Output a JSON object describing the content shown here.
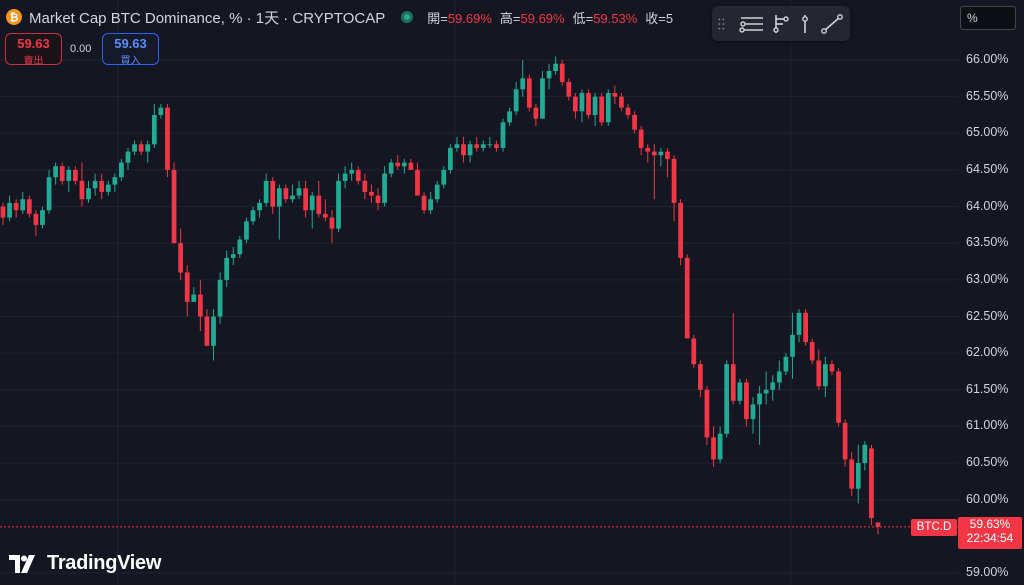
{
  "header": {
    "coin_symbol": "₿",
    "title": "Market Cap BTC Dominance, % · 1天 · CRYPTOCAP",
    "open_label": "開=",
    "open_value": "59.69%",
    "high_label": "高=",
    "high_value": "59.69%",
    "low_label": "低=",
    "low_value": "59.53%",
    "close_label": "收=5"
  },
  "trade": {
    "sell_price": "59.63",
    "sell_label": "賣出",
    "spread": "0.00",
    "buy_price": "59.63",
    "buy_label": "買入"
  },
  "toolbar": {
    "icons": [
      "grip-icon",
      "horizontal-lines-icon",
      "fib-tool-icon",
      "vertical-line-icon",
      "trend-line-icon"
    ]
  },
  "scale_mode": "%",
  "price_tag": {
    "symbol": "BTC.D",
    "price": "59.63%",
    "countdown": "22:34:54"
  },
  "brand": "TradingView",
  "colors": {
    "up": "#22ab94",
    "down": "#f23645",
    "background": "#141722",
    "grid": "#1f2330"
  },
  "chart_data": {
    "type": "candlestick",
    "y_ticks": [
      "66.00%",
      "65.50%",
      "65.00%",
      "64.50%",
      "64.00%",
      "63.50%",
      "63.00%",
      "62.50%",
      "62.00%",
      "61.50%",
      "61.00%",
      "60.50%",
      "60.00%",
      "59.00%"
    ],
    "ylim": [
      59.0,
      66.3
    ],
    "last_price": 59.63,
    "grid": true,
    "candles": [
      [
        64.0,
        64.05,
        63.75,
        63.85
      ],
      [
        63.85,
        64.15,
        63.8,
        64.05
      ],
      [
        64.05,
        64.1,
        63.85,
        63.95
      ],
      [
        63.95,
        64.2,
        63.9,
        64.1
      ],
      [
        64.1,
        64.15,
        63.85,
        63.9
      ],
      [
        63.9,
        63.95,
        63.6,
        63.75
      ],
      [
        63.75,
        64.0,
        63.7,
        63.95
      ],
      [
        63.95,
        64.5,
        63.9,
        64.4
      ],
      [
        64.4,
        64.6,
        64.3,
        64.55
      ],
      [
        64.55,
        64.6,
        64.3,
        64.35
      ],
      [
        64.35,
        64.55,
        64.2,
        64.5
      ],
      [
        64.5,
        64.55,
        64.3,
        64.35
      ],
      [
        64.35,
        64.6,
        64.0,
        64.1
      ],
      [
        64.1,
        64.35,
        64.05,
        64.25
      ],
      [
        64.25,
        64.45,
        64.15,
        64.35
      ],
      [
        64.35,
        64.45,
        64.1,
        64.2
      ],
      [
        64.2,
        64.35,
        64.15,
        64.3
      ],
      [
        64.3,
        64.45,
        64.2,
        64.4
      ],
      [
        64.4,
        64.65,
        64.35,
        64.6
      ],
      [
        64.6,
        64.8,
        64.5,
        64.75
      ],
      [
        64.75,
        64.9,
        64.7,
        64.85
      ],
      [
        64.85,
        64.9,
        64.7,
        64.75
      ],
      [
        64.75,
        64.9,
        64.6,
        64.85
      ],
      [
        64.85,
        65.4,
        64.8,
        65.25
      ],
      [
        65.25,
        65.4,
        65.2,
        65.35
      ],
      [
        65.35,
        65.4,
        64.4,
        64.5
      ],
      [
        64.5,
        64.6,
        63.5,
        63.5
      ],
      [
        63.5,
        63.7,
        63.0,
        63.1
      ],
      [
        63.1,
        63.2,
        62.5,
        62.7
      ],
      [
        62.7,
        62.9,
        62.7,
        62.8
      ],
      [
        62.8,
        63.0,
        62.3,
        62.5
      ],
      [
        62.5,
        62.6,
        62.1,
        62.1
      ],
      [
        62.1,
        62.6,
        61.9,
        62.5
      ],
      [
        62.5,
        63.1,
        62.4,
        63.0
      ],
      [
        63.0,
        63.4,
        62.9,
        63.3
      ],
      [
        63.3,
        63.45,
        63.2,
        63.35
      ],
      [
        63.35,
        63.6,
        63.3,
        63.55
      ],
      [
        63.55,
        63.85,
        63.5,
        63.8
      ],
      [
        63.8,
        64.0,
        63.75,
        63.95
      ],
      [
        63.95,
        64.1,
        63.85,
        64.05
      ],
      [
        64.05,
        64.45,
        64.0,
        64.35
      ],
      [
        64.35,
        64.4,
        63.9,
        64.0
      ],
      [
        64.0,
        64.3,
        63.55,
        64.25
      ],
      [
        64.25,
        64.3,
        64.05,
        64.1
      ],
      [
        64.1,
        64.3,
        64.05,
        64.15
      ],
      [
        64.15,
        64.35,
        64.1,
        64.25
      ],
      [
        64.25,
        64.35,
        63.85,
        63.95
      ],
      [
        63.95,
        64.2,
        63.7,
        64.15
      ],
      [
        64.15,
        64.35,
        63.85,
        63.9
      ],
      [
        63.9,
        64.1,
        63.8,
        63.85
      ],
      [
        63.85,
        63.95,
        63.5,
        63.7
      ],
      [
        63.7,
        64.45,
        63.65,
        64.35
      ],
      [
        64.35,
        64.55,
        64.25,
        64.45
      ],
      [
        64.45,
        64.6,
        64.35,
        64.5
      ],
      [
        64.5,
        64.55,
        64.3,
        64.35
      ],
      [
        64.35,
        64.45,
        64.1,
        64.2
      ],
      [
        64.2,
        64.3,
        64.05,
        64.15
      ],
      [
        64.15,
        64.25,
        63.95,
        64.05
      ],
      [
        64.05,
        64.55,
        64.0,
        64.45
      ],
      [
        64.45,
        64.65,
        64.4,
        64.6
      ],
      [
        64.6,
        64.7,
        64.5,
        64.55
      ],
      [
        64.55,
        64.65,
        64.45,
        64.6
      ],
      [
        64.6,
        64.65,
        64.5,
        64.5
      ],
      [
        64.5,
        64.6,
        64.15,
        64.15
      ],
      [
        64.15,
        64.2,
        63.9,
        63.95
      ],
      [
        63.95,
        64.2,
        63.9,
        64.1
      ],
      [
        64.1,
        64.35,
        64.05,
        64.3
      ],
      [
        64.3,
        64.55,
        64.25,
        64.5
      ],
      [
        64.5,
        64.85,
        64.45,
        64.8
      ],
      [
        64.8,
        64.95,
        64.75,
        64.85
      ],
      [
        64.85,
        64.95,
        64.6,
        64.7
      ],
      [
        64.7,
        64.9,
        64.6,
        64.85
      ],
      [
        64.85,
        64.95,
        64.75,
        64.8
      ],
      [
        64.8,
        64.9,
        64.75,
        64.85
      ],
      [
        64.85,
        64.95,
        64.8,
        64.85
      ],
      [
        64.85,
        64.9,
        64.75,
        64.8
      ],
      [
        64.8,
        65.2,
        64.75,
        65.15
      ],
      [
        65.15,
        65.35,
        65.1,
        65.3
      ],
      [
        65.3,
        65.7,
        65.25,
        65.6
      ],
      [
        65.6,
        66.0,
        65.5,
        65.75
      ],
      [
        65.75,
        65.8,
        65.3,
        65.35
      ],
      [
        65.35,
        65.4,
        65.1,
        65.2
      ],
      [
        65.2,
        65.85,
        65.2,
        65.75
      ],
      [
        65.75,
        65.95,
        65.6,
        65.85
      ],
      [
        65.85,
        66.05,
        65.8,
        65.95
      ],
      [
        65.95,
        66.0,
        65.65,
        65.7
      ],
      [
        65.7,
        65.75,
        65.45,
        65.5
      ],
      [
        65.5,
        65.55,
        65.2,
        65.3
      ],
      [
        65.3,
        65.6,
        65.15,
        65.55
      ],
      [
        65.55,
        65.6,
        65.2,
        65.25
      ],
      [
        65.25,
        65.55,
        65.1,
        65.5
      ],
      [
        65.5,
        65.55,
        65.1,
        65.15
      ],
      [
        65.15,
        65.6,
        65.1,
        65.55
      ],
      [
        65.55,
        65.65,
        65.4,
        65.5
      ],
      [
        65.5,
        65.55,
        65.3,
        65.35
      ],
      [
        65.35,
        65.4,
        65.2,
        65.25
      ],
      [
        65.25,
        65.3,
        65.0,
        65.05
      ],
      [
        65.05,
        65.1,
        64.7,
        64.8
      ],
      [
        64.8,
        64.85,
        64.6,
        64.75
      ],
      [
        64.75,
        64.85,
        64.1,
        64.7
      ],
      [
        64.7,
        64.8,
        64.55,
        64.75
      ],
      [
        64.75,
        64.8,
        64.4,
        64.65
      ],
      [
        64.65,
        64.7,
        63.8,
        64.05
      ],
      [
        64.05,
        64.1,
        63.2,
        63.3
      ],
      [
        63.3,
        63.35,
        62.2,
        62.2
      ],
      [
        62.2,
        62.25,
        61.8,
        61.85
      ],
      [
        61.85,
        61.9,
        61.4,
        61.5
      ],
      [
        61.5,
        61.55,
        60.75,
        60.85
      ],
      [
        60.85,
        61.0,
        60.45,
        60.55
      ],
      [
        60.55,
        61.0,
        60.5,
        60.9
      ],
      [
        60.9,
        61.9,
        60.85,
        61.85
      ],
      [
        61.85,
        62.55,
        61.3,
        61.35
      ],
      [
        61.35,
        61.65,
        61.3,
        61.6
      ],
      [
        61.6,
        61.65,
        61.0,
        61.1
      ],
      [
        61.1,
        61.4,
        60.9,
        61.3
      ],
      [
        61.3,
        61.55,
        60.75,
        61.45
      ],
      [
        61.45,
        61.75,
        61.3,
        61.5
      ],
      [
        61.5,
        61.7,
        61.35,
        61.6
      ],
      [
        61.6,
        61.9,
        61.5,
        61.75
      ],
      [
        61.75,
        62.0,
        61.7,
        61.95
      ],
      [
        61.95,
        62.55,
        61.65,
        62.25
      ],
      [
        62.25,
        62.6,
        62.15,
        62.55
      ],
      [
        62.55,
        62.6,
        62.1,
        62.15
      ],
      [
        62.15,
        62.2,
        61.85,
        61.9
      ],
      [
        61.9,
        62.05,
        61.5,
        61.55
      ],
      [
        61.55,
        61.95,
        61.4,
        61.85
      ],
      [
        61.85,
        61.9,
        61.7,
        61.75
      ],
      [
        61.75,
        61.8,
        61.0,
        61.05
      ],
      [
        61.05,
        61.1,
        60.45,
        60.55
      ],
      [
        60.55,
        60.65,
        60.05,
        60.15
      ],
      [
        60.15,
        60.75,
        59.95,
        60.5
      ],
      [
        60.5,
        60.8,
        60.4,
        60.75
      ],
      [
        60.7,
        60.75,
        59.65,
        59.75
      ],
      [
        59.69,
        59.69,
        59.53,
        59.63
      ]
    ]
  }
}
